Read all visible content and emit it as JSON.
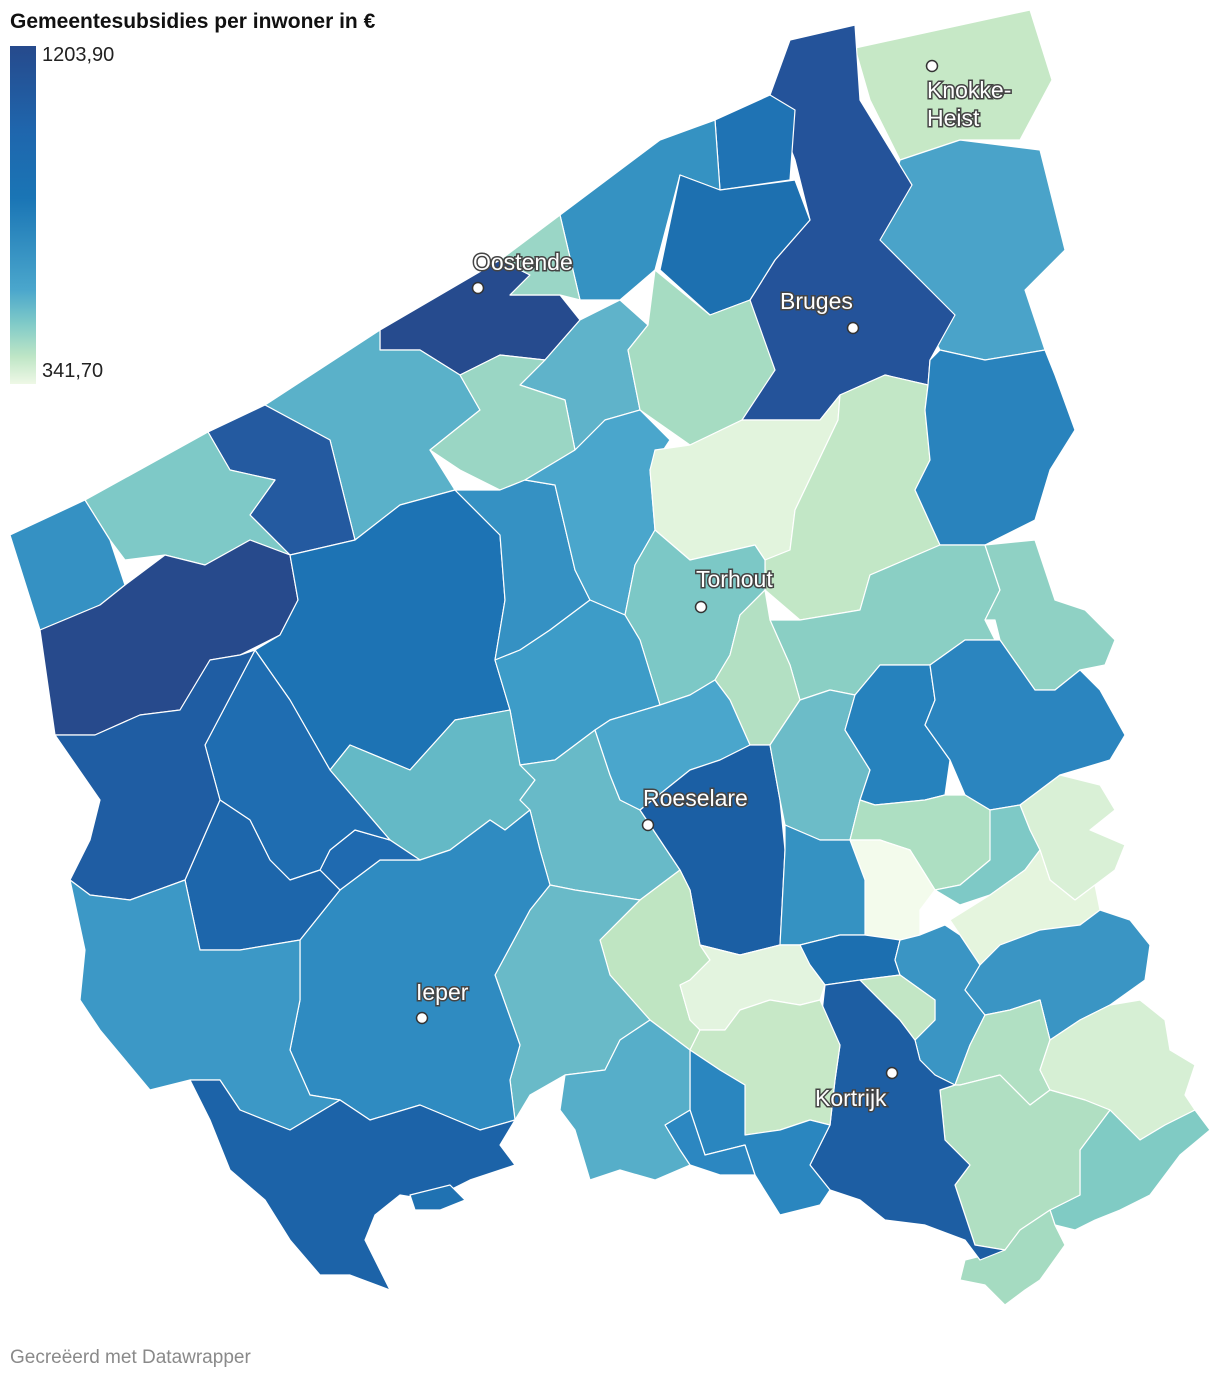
{
  "title": "Gemeentesubsidies per inwoner in €",
  "legend": {
    "max_label": "1203,90",
    "min_label": "341,70",
    "colors": [
      "#264a8c",
      "#1f66ad",
      "#1a75b5",
      "#4aa6cc",
      "#7fcac8",
      "#bfe6c6",
      "#eef8e6"
    ]
  },
  "cities": [
    {
      "name": "Knokke-Heist",
      "lines": [
        "Knokke-",
        "Heist"
      ]
    },
    {
      "name": "Oostende",
      "lines": [
        "Oostende"
      ]
    },
    {
      "name": "Bruges",
      "lines": [
        "Bruges"
      ]
    },
    {
      "name": "Torhout",
      "lines": [
        "Torhout"
      ]
    },
    {
      "name": "Roeselare",
      "lines": [
        "Roeselare"
      ]
    },
    {
      "name": "Ieper",
      "lines": [
        "Ieper"
      ]
    },
    {
      "name": "Kortrijk",
      "lines": [
        "Kortrijk"
      ]
    }
  ],
  "footer": "Gecreëerd met Datawrapper"
}
